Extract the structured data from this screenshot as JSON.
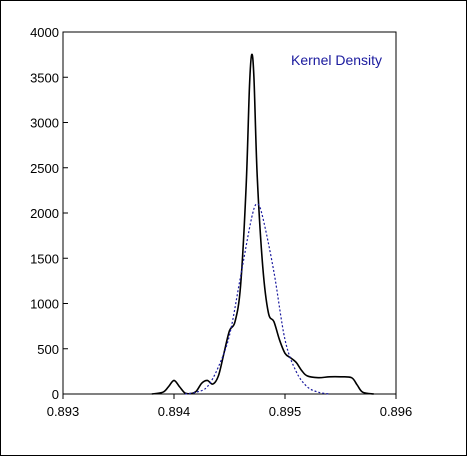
{
  "chart_data": {
    "type": "line",
    "title": "",
    "xlabel": "",
    "ylabel": "",
    "xlim": [
      0.893,
      0.896
    ],
    "ylim": [
      0,
      4000
    ],
    "x_ticks": [
      "0.893",
      "0.894",
      "0.895",
      "0.896"
    ],
    "y_ticks": [
      "0",
      "500",
      "1000",
      "1500",
      "2000",
      "2500",
      "3000",
      "3500",
      "4000"
    ],
    "grid": false,
    "legend_text": "Kernel Density",
    "legend_color": "#1a1a9e",
    "series": [
      {
        "style": "solid",
        "color": "#000000",
        "x": [
          0.8938,
          0.8939,
          0.89395,
          0.894,
          0.89405,
          0.8941,
          0.89415,
          0.8942,
          0.89425,
          0.8943,
          0.89435,
          0.8944,
          0.89445,
          0.8945,
          0.89455,
          0.8946,
          0.89465,
          0.89468,
          0.8947,
          0.89472,
          0.89475,
          0.8948,
          0.89485,
          0.8949,
          0.89495,
          0.895,
          0.89505,
          0.8951,
          0.89515,
          0.8952,
          0.8953,
          0.8954,
          0.8955,
          0.8956,
          0.89565,
          0.8957,
          0.8958
        ],
        "y": [
          0,
          20,
          80,
          150,
          80,
          10,
          5,
          30,
          120,
          150,
          110,
          200,
          450,
          700,
          800,
          1200,
          2300,
          3400,
          3750,
          3500,
          2400,
          1400,
          900,
          800,
          600,
          450,
          400,
          350,
          260,
          200,
          180,
          190,
          190,
          180,
          100,
          20,
          0
        ]
      },
      {
        "style": "dotted",
        "color": "#1a1a9e",
        "x": [
          0.8941,
          0.8942,
          0.8943,
          0.8944,
          0.8945,
          0.8946,
          0.8947,
          0.89475,
          0.8948,
          0.8949,
          0.895,
          0.8951,
          0.8952,
          0.8953,
          0.8954
        ],
        "y": [
          0,
          20,
          80,
          300,
          650,
          1300,
          1950,
          2100,
          1950,
          1350,
          600,
          250,
          80,
          20,
          0
        ]
      }
    ]
  }
}
